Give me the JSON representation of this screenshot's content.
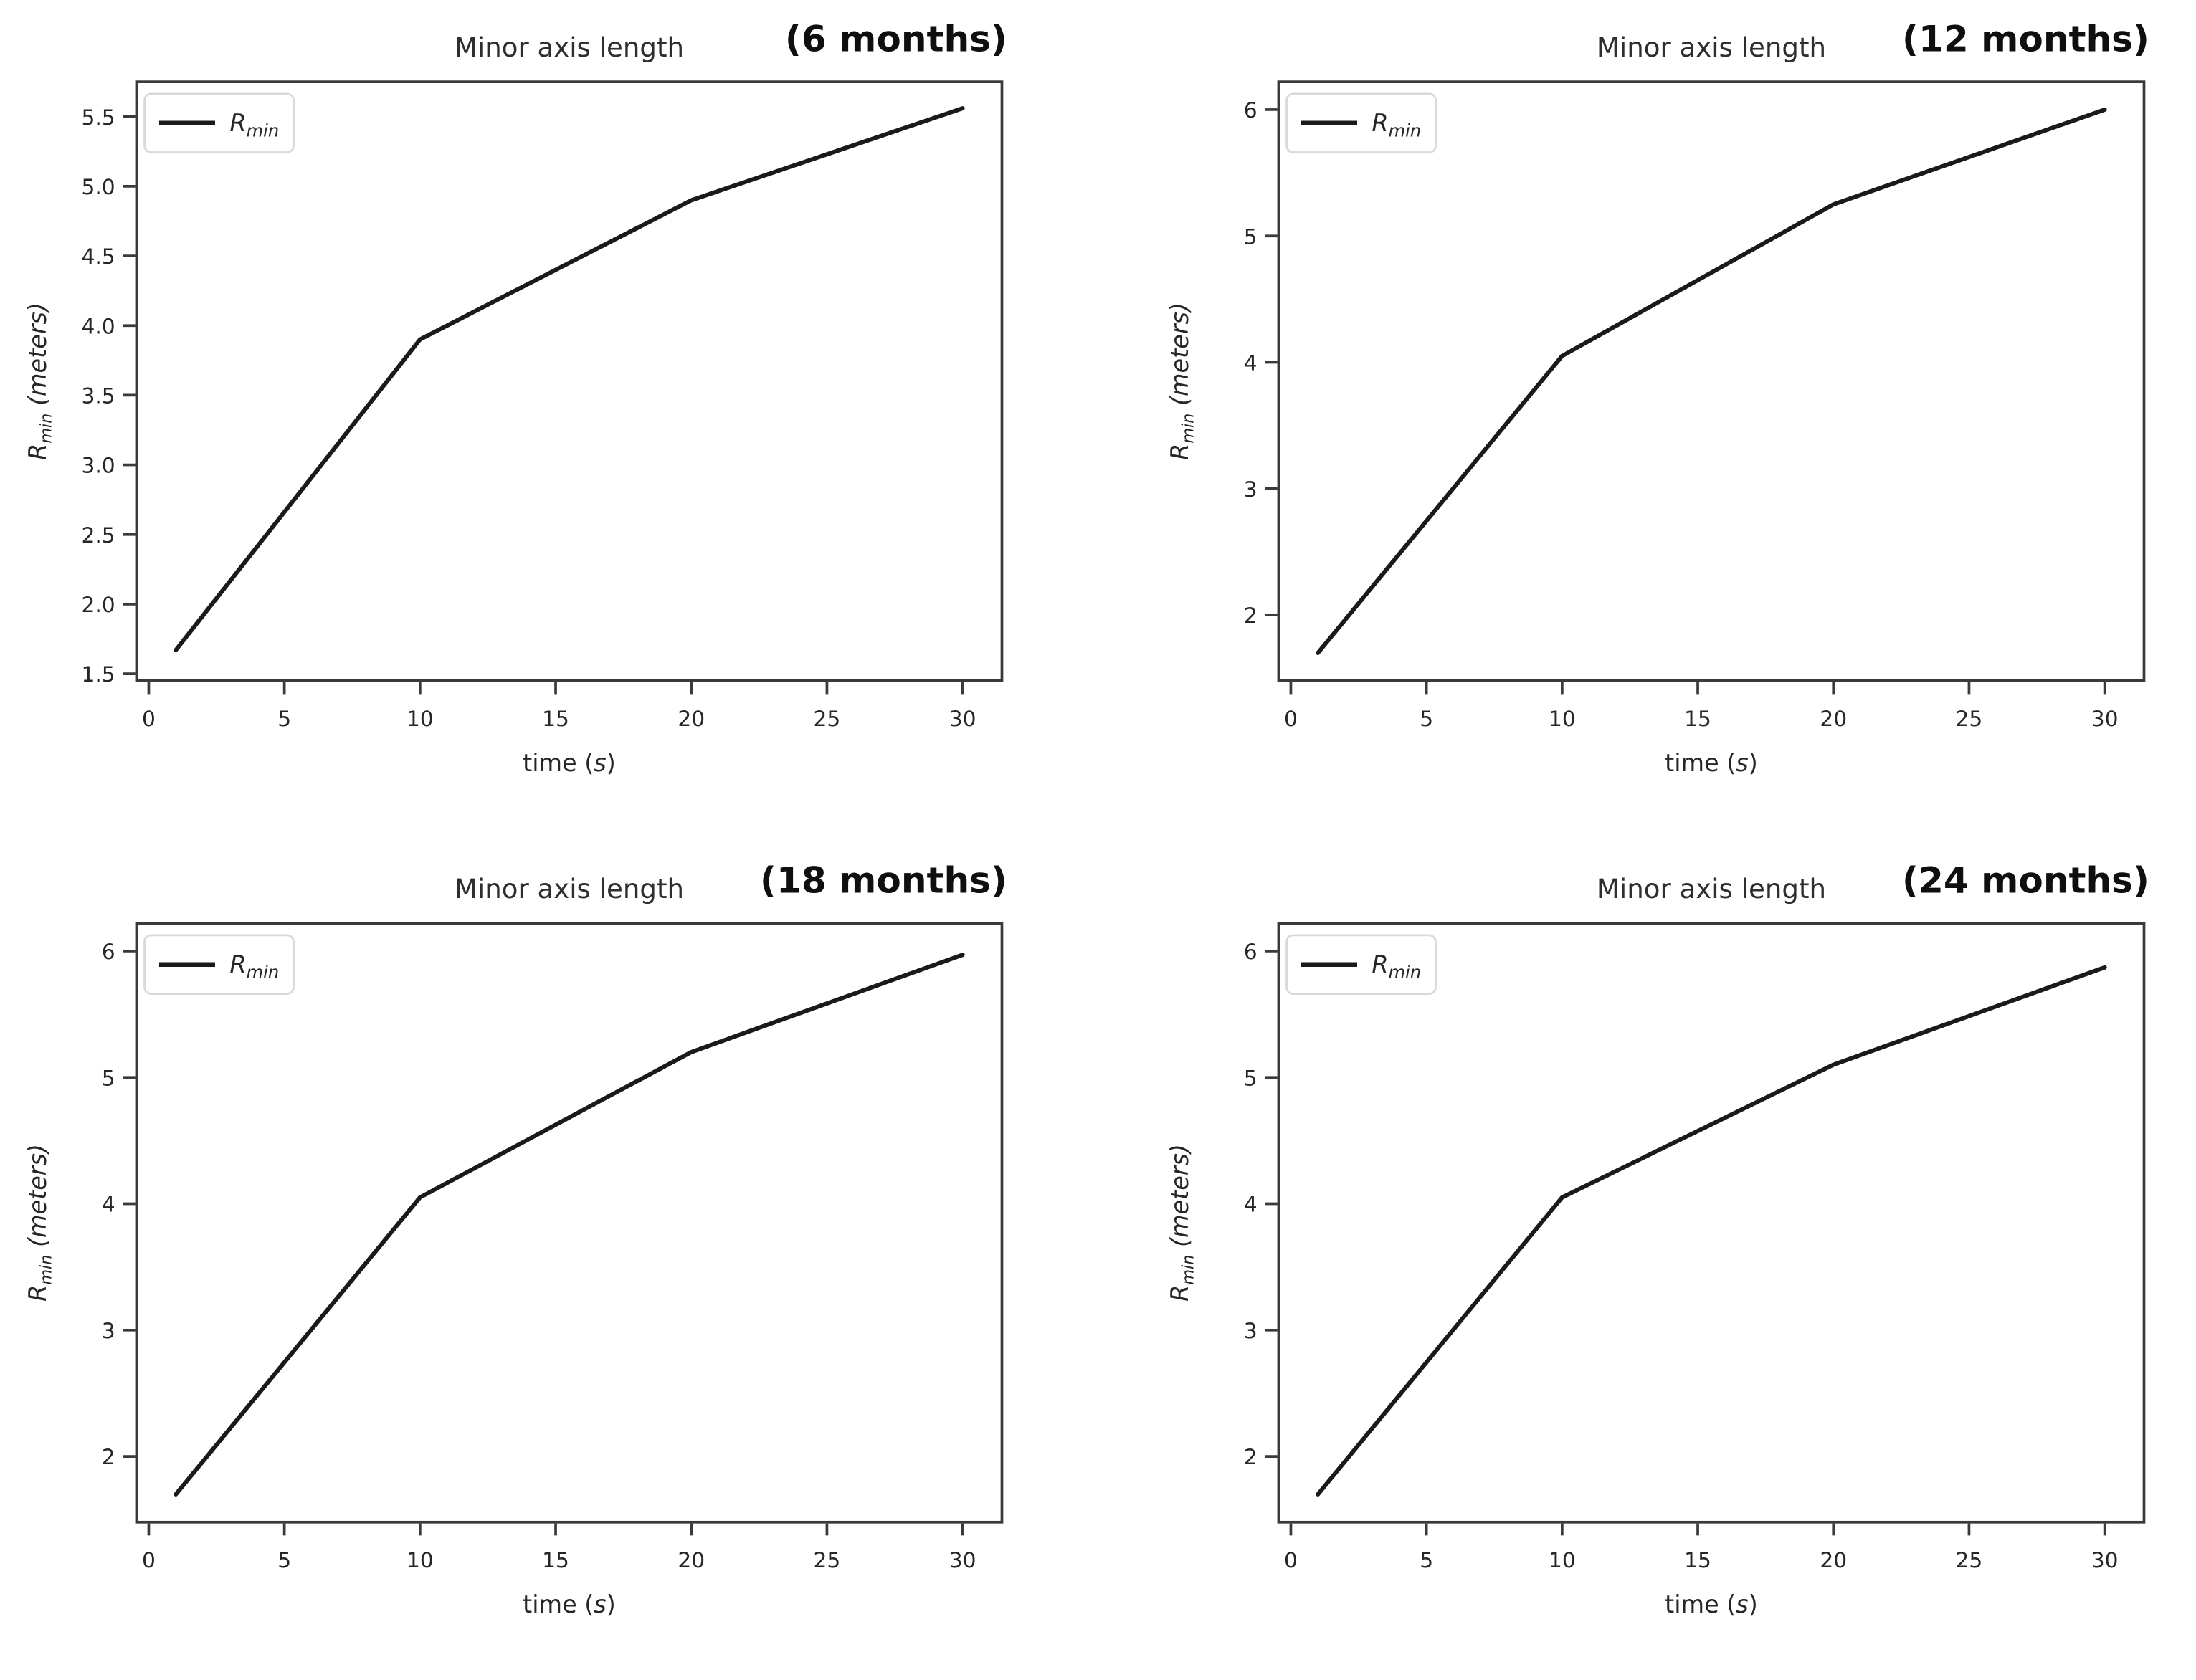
{
  "page": {
    "background": "#ffffff"
  },
  "chart_data": [
    {
      "id": "chart-6-months",
      "type": "line",
      "title": "Minor axis length",
      "annotation": "(6 months)",
      "xlabel": "time (s)",
      "xlabel_parts": {
        "pre": "time (",
        "var": "s",
        "post": ")"
      },
      "ylabel": "R_min (meters)",
      "ylabel_parts": {
        "base": "R",
        "sub": "min",
        "unit": " (meters)"
      },
      "series": [
        {
          "name": "R_min",
          "name_parts": {
            "base": "R",
            "sub": "min"
          },
          "color": "#1a1a1a",
          "x": [
            1,
            10,
            20,
            30
          ],
          "y": [
            1.67,
            3.9,
            4.9,
            5.56
          ]
        }
      ],
      "xlim": [
        -0.45,
        31.45
      ],
      "ylim": [
        1.45,
        5.75
      ],
      "xticks": [
        0,
        5,
        10,
        15,
        20,
        25,
        30
      ],
      "xtick_labels": [
        "0",
        "5",
        "10",
        "15",
        "20",
        "25",
        "30"
      ],
      "yticks": [
        1.5,
        2.0,
        2.5,
        3.0,
        3.5,
        4.0,
        4.5,
        5.0,
        5.5
      ],
      "ytick_labels": [
        "1.5",
        "2.0",
        "2.5",
        "3.0",
        "3.5",
        "4.0",
        "4.5",
        "5.0",
        "5.5"
      ],
      "legend_position": "upper left",
      "grid": false
    },
    {
      "id": "chart-12-months",
      "type": "line",
      "title": "Minor axis length",
      "annotation": "(12 months)",
      "xlabel": "time (s)",
      "xlabel_parts": {
        "pre": "time (",
        "var": "s",
        "post": ")"
      },
      "ylabel": "R_min (meters)",
      "ylabel_parts": {
        "base": "R",
        "sub": "min",
        "unit": " (meters)"
      },
      "series": [
        {
          "name": "R_min",
          "name_parts": {
            "base": "R",
            "sub": "min"
          },
          "color": "#1a1a1a",
          "x": [
            1,
            10,
            20,
            30
          ],
          "y": [
            1.7,
            4.05,
            5.25,
            6.0
          ]
        }
      ],
      "xlim": [
        -0.45,
        31.45
      ],
      "ylim": [
        1.48,
        6.22
      ],
      "xticks": [
        0,
        5,
        10,
        15,
        20,
        25,
        30
      ],
      "xtick_labels": [
        "0",
        "5",
        "10",
        "15",
        "20",
        "25",
        "30"
      ],
      "yticks": [
        2,
        3,
        4,
        5,
        6
      ],
      "ytick_labels": [
        "2",
        "3",
        "4",
        "5",
        "6"
      ],
      "legend_position": "upper left",
      "grid": false
    },
    {
      "id": "chart-18-months",
      "type": "line",
      "title": "Minor axis length",
      "annotation": "(18 months)",
      "xlabel": "time (s)",
      "xlabel_parts": {
        "pre": "time (",
        "var": "s",
        "post": ")"
      },
      "ylabel": "R_min (meters)",
      "ylabel_parts": {
        "base": "R",
        "sub": "min",
        "unit": " (meters)"
      },
      "series": [
        {
          "name": "R_min",
          "name_parts": {
            "base": "R",
            "sub": "min"
          },
          "color": "#1a1a1a",
          "x": [
            1,
            10,
            20,
            30
          ],
          "y": [
            1.7,
            4.05,
            5.2,
            5.97
          ]
        }
      ],
      "xlim": [
        -0.45,
        31.45
      ],
      "ylim": [
        1.48,
        6.22
      ],
      "xticks": [
        0,
        5,
        10,
        15,
        20,
        25,
        30
      ],
      "xtick_labels": [
        "0",
        "5",
        "10",
        "15",
        "20",
        "25",
        "30"
      ],
      "yticks": [
        2,
        3,
        4,
        5,
        6
      ],
      "ytick_labels": [
        "2",
        "3",
        "4",
        "5",
        "6"
      ],
      "legend_position": "upper left",
      "grid": false
    },
    {
      "id": "chart-24-months",
      "type": "line",
      "title": "Minor axis length",
      "annotation": "(24 months)",
      "xlabel": "time (s)",
      "xlabel_parts": {
        "pre": "time (",
        "var": "s",
        "post": ")"
      },
      "ylabel": "R_min (meters)",
      "ylabel_parts": {
        "base": "R",
        "sub": "min",
        "unit": " (meters)"
      },
      "series": [
        {
          "name": "R_min",
          "name_parts": {
            "base": "R",
            "sub": "min"
          },
          "color": "#1a1a1a",
          "x": [
            1,
            10,
            20,
            30
          ],
          "y": [
            1.7,
            4.05,
            5.1,
            5.87
          ]
        }
      ],
      "xlim": [
        -0.45,
        31.45
      ],
      "ylim": [
        1.48,
        6.22
      ],
      "xticks": [
        0,
        5,
        10,
        15,
        20,
        25,
        30
      ],
      "xtick_labels": [
        "0",
        "5",
        "10",
        "15",
        "20",
        "25",
        "30"
      ],
      "yticks": [
        2,
        3,
        4,
        5,
        6
      ],
      "ytick_labels": [
        "2",
        "3",
        "4",
        "5",
        "6"
      ],
      "legend_position": "upper left",
      "grid": false
    }
  ]
}
